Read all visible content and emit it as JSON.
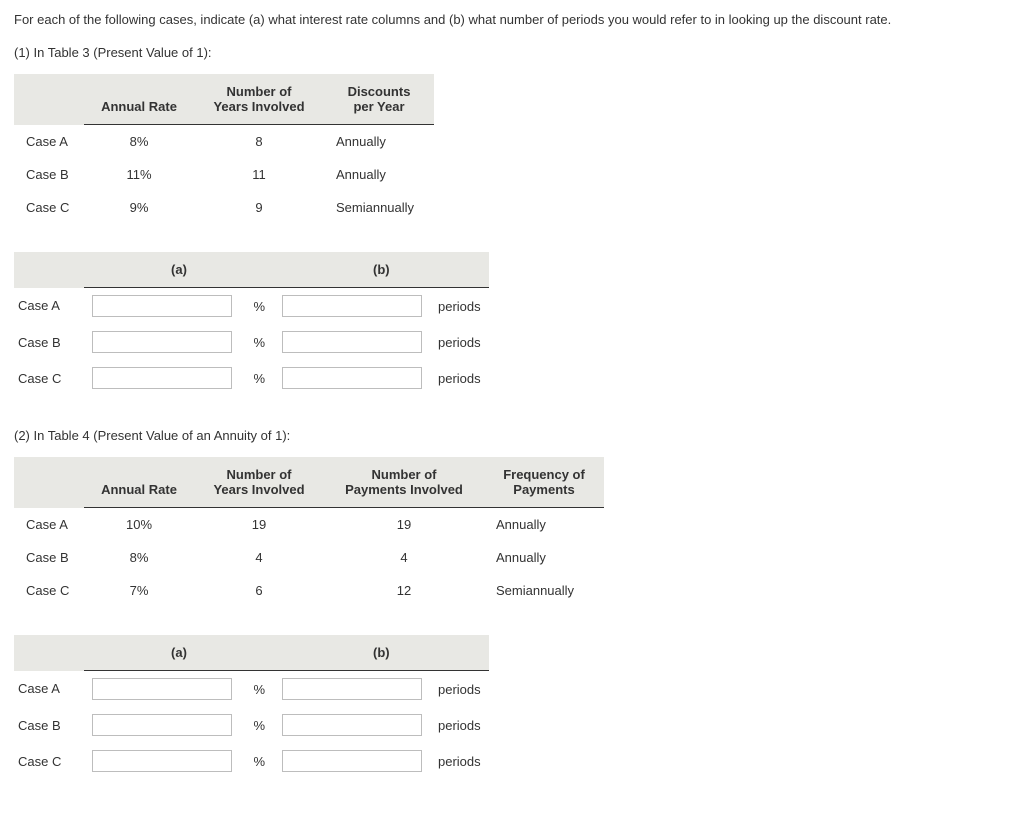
{
  "question": "For each of the following cases, indicate (a) what interest rate columns and (b) what number of periods you would refer to in looking up the discount rate.",
  "section1": {
    "heading": "(1) In Table 3 (Present Value of 1):",
    "headers": {
      "rate": "Annual Rate",
      "years": "Number of\nYears Involved",
      "discounts": "Discounts\nper Year"
    },
    "rows": [
      {
        "case": "Case A",
        "rate": "8%",
        "years": "8",
        "discounts": "Annually"
      },
      {
        "case": "Case B",
        "rate": "11%",
        "years": "11",
        "discounts": "Annually"
      },
      {
        "case": "Case C",
        "rate": "9%",
        "years": "9",
        "discounts": "Semiannually"
      }
    ]
  },
  "answers1": {
    "col_a": "(a)",
    "col_b": "(b)",
    "pct": "%",
    "periods": "periods",
    "rows": [
      {
        "case": "Case A",
        "a": "",
        "b": ""
      },
      {
        "case": "Case B",
        "a": "",
        "b": ""
      },
      {
        "case": "Case C",
        "a": "",
        "b": ""
      }
    ]
  },
  "section2": {
    "heading": "(2) In Table 4 (Present Value of an Annuity of 1):",
    "headers": {
      "rate": "Annual Rate",
      "years": "Number of\nYears Involved",
      "payments": "Number of\nPayments Involved",
      "freq": "Frequency of\nPayments"
    },
    "rows": [
      {
        "case": "Case A",
        "rate": "10%",
        "years": "19",
        "payments": "19",
        "freq": "Annually"
      },
      {
        "case": "Case B",
        "rate": "8%",
        "years": "4",
        "payments": "4",
        "freq": "Annually"
      },
      {
        "case": "Case C",
        "rate": "7%",
        "years": "6",
        "payments": "12",
        "freq": "Semiannually"
      }
    ]
  },
  "answers2": {
    "col_a": "(a)",
    "col_b": "(b)",
    "pct": "%",
    "periods": "periods",
    "rows": [
      {
        "case": "Case A",
        "a": "",
        "b": ""
      },
      {
        "case": "Case B",
        "a": "",
        "b": ""
      },
      {
        "case": "Case C",
        "a": "",
        "b": ""
      }
    ]
  }
}
